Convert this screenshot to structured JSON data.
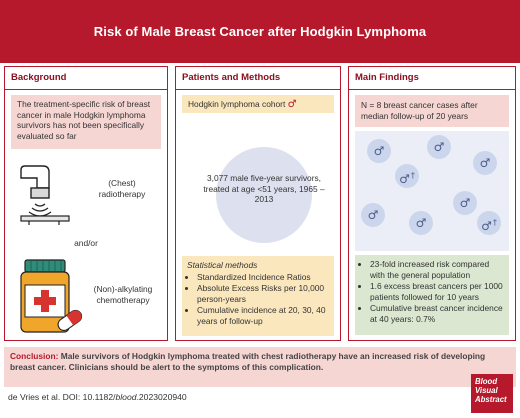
{
  "title": "Risk of Male Breast Cancer after Hodgkin Lymphoma",
  "background": {
    "heading": "Background",
    "intro": "The treatment-specific risk of breast cancer in male Hodgkin lymphoma survivors has not been specifically evaluated so far",
    "radiotherapy": "(Chest) radiotherapy",
    "andor": "and/or",
    "chemotherapy": "(Non)-alkylating chemotherapy"
  },
  "methods": {
    "heading": "Patients and Methods",
    "cohort_label": "Hodgkin lymphoma cohort",
    "male_symbol": "♂",
    "cohort_desc": "3,077 male five-year survivors, treated at age <51 years, 1965 – 2013",
    "stat_title": "Statistical methods",
    "stat_items": [
      "Standardized Incidence Ratios",
      "Absolute Excess Risks per 10,000 person-years",
      "Cumulative incidence at 20, 30, 40 years of follow-up"
    ]
  },
  "findings": {
    "heading": "Main Findings",
    "cases": "N = 8 breast cancer cases after median follow-up of 20 years",
    "patient_symbols": [
      "♂",
      "♂",
      "♂",
      "♂†",
      "♂",
      "♂",
      "♂",
      "♂†"
    ],
    "results": [
      "23-fold increased risk compared with the general population",
      "1.6 excess breast cancers per 1000 patients followed for 10 years",
      "Cumulative breast cancer incidence at 40 years: 0.7%"
    ]
  },
  "conclusion": {
    "label": "Conclusion:",
    "text": "Male survivors of Hodgkin lymphoma treated with chest radiotherapy have an increased risk of developing breast cancer. Clinicians should be alert to the symptoms of this complication."
  },
  "citation": {
    "pre": "de Vries et al. DOI: 10.1182/",
    "journal": "blood",
    "post": ".2023020940"
  },
  "logo": [
    "Blood",
    "Visual",
    "Abstract"
  ],
  "colors": {
    "brand_red": "#b5192b",
    "pink": "#f6d6d3",
    "yellow": "#fbe7bd",
    "green": "#dbe7d0",
    "blue": "#ebeef6"
  }
}
